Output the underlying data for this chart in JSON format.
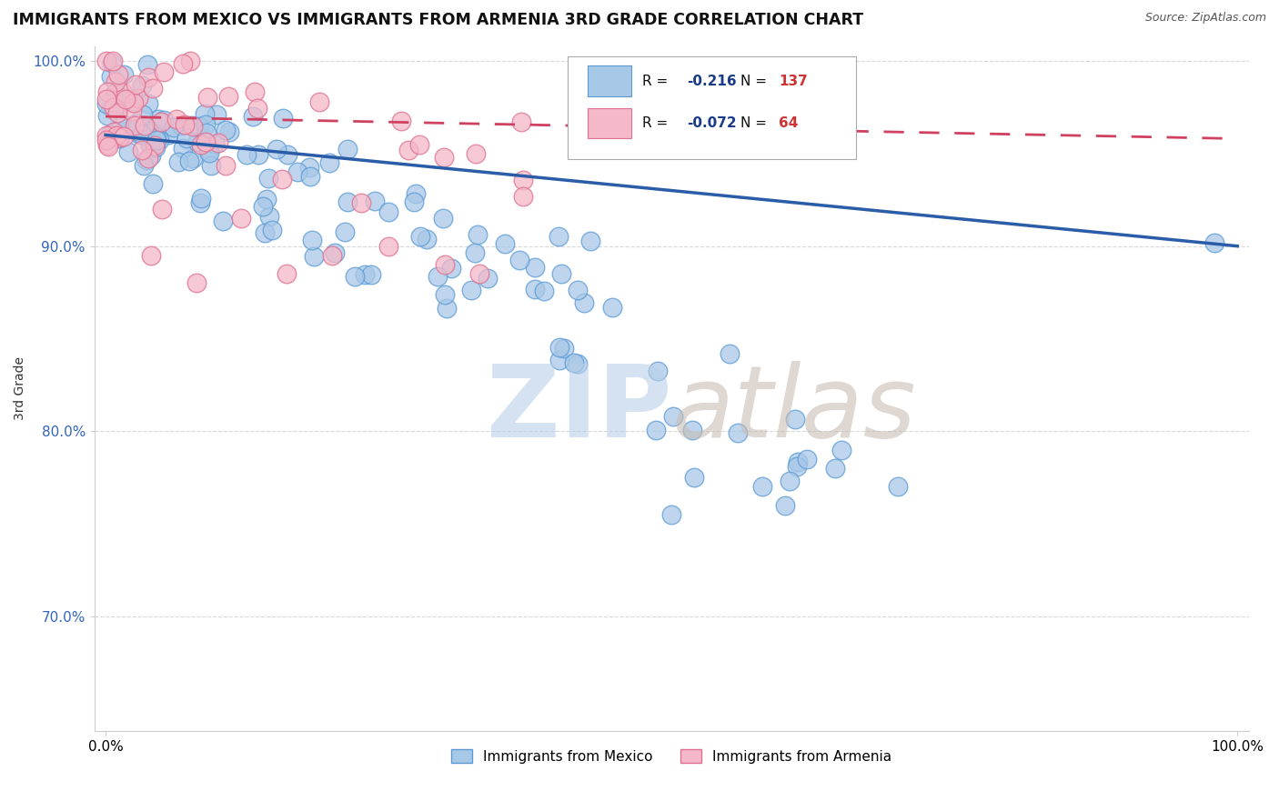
{
  "title": "IMMIGRANTS FROM MEXICO VS IMMIGRANTS FROM ARMENIA 3RD GRADE CORRELATION CHART",
  "source": "Source: ZipAtlas.com",
  "ylabel": "3rd Grade",
  "legend_blue_label": "Immigrants from Mexico",
  "legend_pink_label": "Immigrants from Armenia",
  "R_blue": -0.216,
  "N_blue": 137,
  "R_pink": -0.072,
  "N_pink": 64,
  "xlim": [
    0.0,
    1.0
  ],
  "ylim": [
    0.638,
    1.008
  ],
  "yticks": [
    0.7,
    0.8,
    0.9,
    1.0
  ],
  "ytick_labels": [
    "70.0%",
    "80.0%",
    "90.0%",
    "100.0%"
  ],
  "xticks": [
    0.0,
    1.0
  ],
  "xtick_labels": [
    "0.0%",
    "100.0%"
  ],
  "blue_color": "#a8c8e8",
  "blue_edge": "#5b9bd5",
  "pink_color": "#f4b8c8",
  "pink_edge": "#e07090",
  "trendline_blue": "#2b5ca8",
  "trendline_pink": "#d04060",
  "trendline_blue_y0": 0.96,
  "trendline_blue_y1": 0.9,
  "trendline_pink_y0": 0.97,
  "trendline_pink_y1": 0.958,
  "watermark_zip_color": "#b8cfe8",
  "watermark_atlas_color": "#c8bdb5",
  "legend_R_color": "#1a3a8a",
  "legend_N_color": "#cc3333"
}
